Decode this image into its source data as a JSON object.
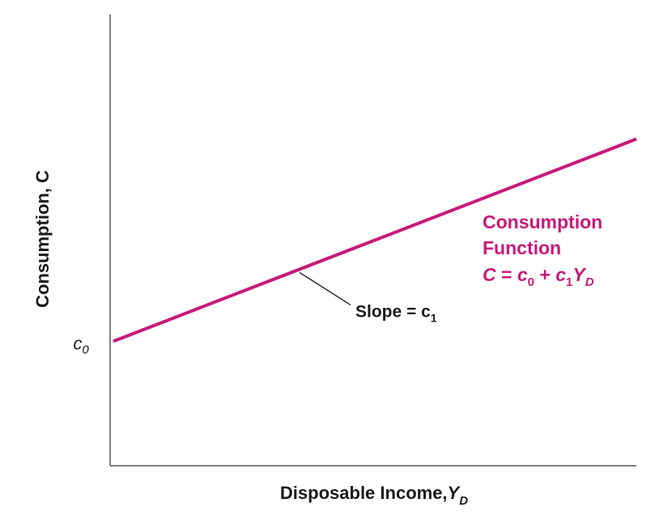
{
  "chart_data": {
    "type": "line",
    "xlabel": "Disposable Income,",
    "xlabel_var": "Y",
    "xlabel_sub": "D",
    "ylabel": "Consumption, C",
    "intercept_label": "c",
    "intercept_sub": "0",
    "series": [
      {
        "name": "Consumption Function",
        "equation": {
          "lhs": "C",
          "eq": " = ",
          "c0": "c",
          "c0_sub": "0",
          "plus": " + ",
          "c1": "c",
          "c1_sub": "1",
          "var": "Y",
          "var_sub": "D"
        },
        "color": "#c8197a",
        "intercept": 1,
        "slope": 0.39,
        "x": [
          0,
          10
        ]
      }
    ],
    "annotation": {
      "text": "Slope = c",
      "sub": "1",
      "x": 3.6
    },
    "xlim": [
      0,
      10
    ],
    "ylim": [
      -1.4,
      7.3
    ],
    "grid": false,
    "legend": "none",
    "axis_color": "#555555",
    "leader_color": "#333333"
  }
}
